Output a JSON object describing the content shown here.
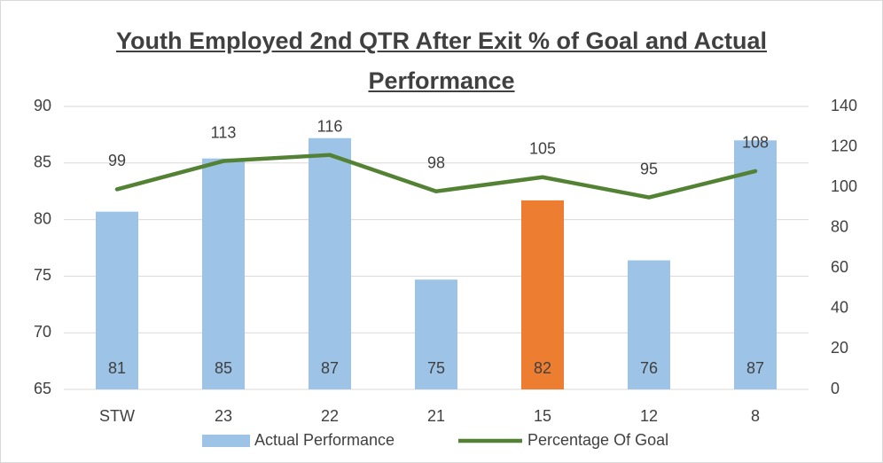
{
  "chart_data": {
    "type": "bar",
    "title": "Youth Employed 2nd QTR After Exit % of Goal and Actual Performance",
    "categories": [
      "STW",
      "23",
      "22",
      "21",
      "15",
      "12",
      "8"
    ],
    "series": [
      {
        "name": "Actual Performance",
        "type": "bar",
        "color": "#9dc3e6",
        "colors": [
          "#9dc3e6",
          "#9dc3e6",
          "#9dc3e6",
          "#9dc3e6",
          "#ed7d31",
          "#9dc3e6",
          "#9dc3e6"
        ],
        "values": [
          80.7,
          85.4,
          87.2,
          74.7,
          81.7,
          76.4,
          87.0
        ],
        "value_labels": [
          "81",
          "85",
          "87",
          "75",
          "82",
          "76",
          "87"
        ]
      },
      {
        "name": "Percentage Of Goal",
        "type": "line",
        "axis": "y2",
        "color": "#548235",
        "values": [
          99,
          113,
          116,
          98,
          105,
          95,
          108
        ]
      }
    ],
    "ylim": [
      65,
      90
    ],
    "yticks": [
      65,
      70,
      75,
      80,
      85,
      90
    ],
    "y2lim": [
      0,
      140
    ],
    "y2ticks": [
      0,
      20,
      40,
      60,
      80,
      100,
      120,
      140
    ],
    "grid": true,
    "legend": "bottom"
  }
}
